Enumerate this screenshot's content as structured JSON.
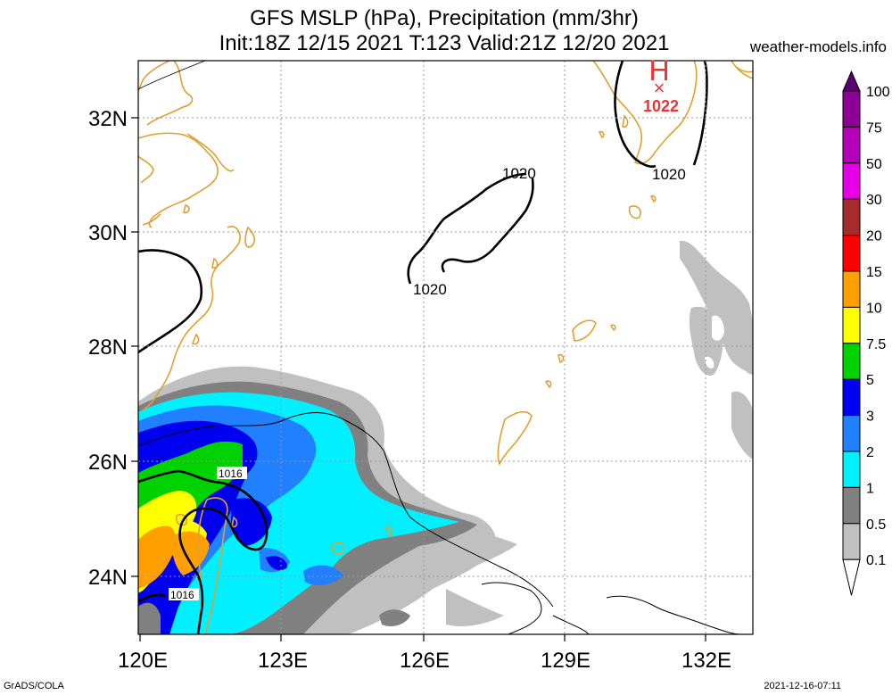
{
  "header": {
    "title_line1": "GFS MSLP (hPa), Precipitation (mm/3hr)",
    "title_line2": "Init:18Z 12/15 2021 T:123 Valid:21Z 12/20 2021",
    "site": "weather-models.info"
  },
  "footer": {
    "left": "GrADS/COLA",
    "right": "2021-12-16-07:11"
  },
  "map": {
    "lat_labels": [
      "32N",
      "30N",
      "28N",
      "26N",
      "24N"
    ],
    "lon_labels": [
      "120E",
      "123E",
      "126E",
      "129E",
      "132E"
    ],
    "high": {
      "symbol": "H",
      "marker": "×",
      "value": "1022"
    },
    "isobar_labels": [
      "1020",
      "1020",
      "1020",
      "1016",
      "1016"
    ],
    "colors": {
      "high": "#ee3333",
      "coast": "#e0a030",
      "isobar": "#000000",
      "grid": "#999999"
    }
  },
  "colorbar": {
    "labels": [
      "100",
      "75",
      "50",
      "30",
      "20",
      "15",
      "10",
      "7.5",
      "5",
      "3",
      "2",
      "1",
      "0.5",
      "0.1"
    ],
    "colors": [
      "#8c0094",
      "#b400b8",
      "#e600e6",
      "#a62b2b",
      "#ff0000",
      "#ffa000",
      "#ffff00",
      "#00d200",
      "#0000f0",
      "#2080ff",
      "#00f0ff",
      "#808080",
      "#c0c0c0",
      "#ffffff"
    ],
    "top_color": "#5a0070"
  }
}
